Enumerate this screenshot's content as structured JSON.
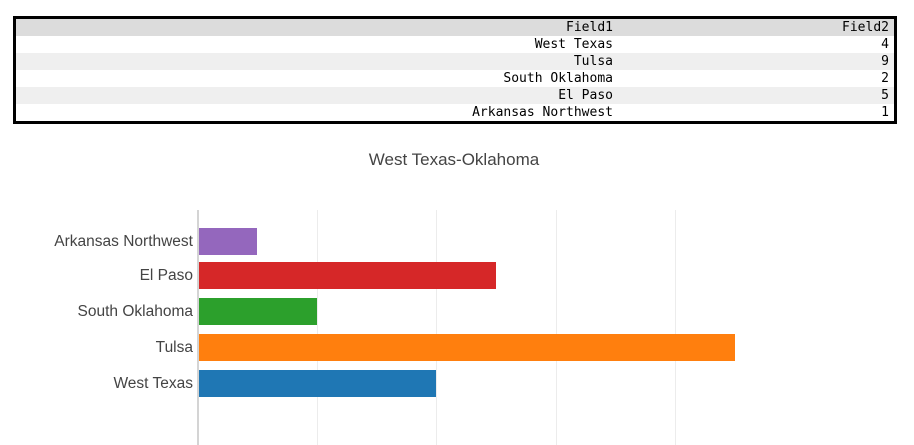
{
  "table": {
    "columns": [
      "Field1",
      "Field2"
    ],
    "rows": [
      [
        "West Texas",
        "4"
      ],
      [
        "Tulsa",
        "9"
      ],
      [
        "South Oklahoma",
        "2"
      ],
      [
        "El Paso",
        "5"
      ],
      [
        "Arkansas Northwest",
        "1"
      ]
    ]
  },
  "chart_data": {
    "type": "bar",
    "orientation": "horizontal",
    "title": "West Texas-Oklahoma",
    "categories": [
      "Arkansas Northwest",
      "El Paso",
      "South Oklahoma",
      "Tulsa",
      "West Texas"
    ],
    "values": [
      1,
      5,
      2,
      9,
      4
    ],
    "colors": [
      "#9467bd",
      "#d62728",
      "#2ca02c",
      "#ff7f0e",
      "#1f77b4"
    ],
    "xlim": [
      0,
      12
    ],
    "gridline_values": [
      2,
      4,
      6,
      8
    ],
    "grid": "vertical-only",
    "legend": "none",
    "x_tick_labels_visible": false,
    "category_order_note": "categories listed top to bottom as rendered; source order is table.rows (first row drawn at bottom)"
  }
}
